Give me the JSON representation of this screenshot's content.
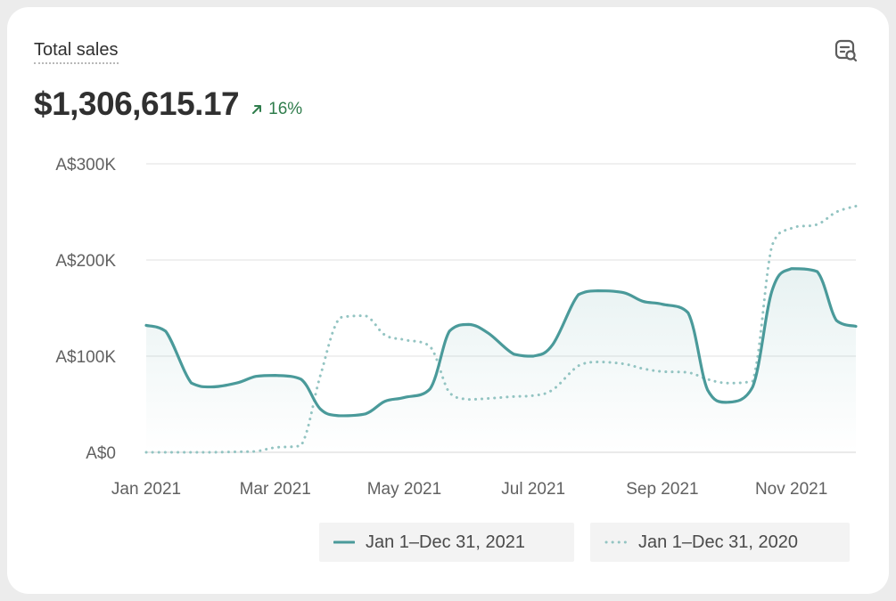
{
  "card": {
    "title": "Total sales",
    "total_value": "$1,306,615.17",
    "delta": "16%",
    "icon": "search-data-icon"
  },
  "colors": {
    "current": "#4a9a9a",
    "previous": "#93c4c2",
    "delta": "#2f7d4c",
    "grid": "#e6e6e6"
  },
  "chart_data": {
    "type": "line",
    "yticks": [
      "A$0",
      "A$100K",
      "A$200K",
      "A$300K"
    ],
    "ytick_values": [
      0,
      100000,
      200000,
      300000
    ],
    "xticks": [
      "Jan 2021",
      "Mar 2021",
      "May 2021",
      "Jul 2021",
      "Sep 2021",
      "Nov 2021"
    ],
    "xtick_months": [
      0,
      2,
      4,
      6,
      8,
      10
    ],
    "x_range_months": [
      0,
      11
    ],
    "ylim": [
      0,
      300000
    ],
    "grid": true,
    "legend_placement": "bottom-right",
    "series": [
      {
        "name": "Jan 1–Dec 31, 2021",
        "style": "solid",
        "x": [
          0,
          0.3,
          0.7,
          1.0,
          1.4,
          1.7,
          2.0,
          2.4,
          2.7,
          3.0,
          3.4,
          3.7,
          4.0,
          4.4,
          4.7,
          5.0,
          5.3,
          5.7,
          6.0,
          6.3,
          6.7,
          7.0,
          7.4,
          7.7,
          8.0,
          8.4,
          8.7,
          9.0,
          9.4,
          9.7,
          10.0,
          10.4,
          10.7,
          11.0
        ],
        "y": [
          132000,
          126000,
          72000,
          68000,
          72000,
          79000,
          80000,
          76000,
          45000,
          38000,
          40000,
          53000,
          57000,
          66000,
          126000,
          133000,
          124000,
          102000,
          100000,
          112000,
          164000,
          168000,
          166000,
          157000,
          154000,
          145000,
          65000,
          52000,
          68000,
          168000,
          191000,
          188000,
          137000,
          131000
        ]
      },
      {
        "name": "Jan 1–Dec 31, 2020",
        "style": "dotted",
        "x": [
          0,
          0.4,
          0.7,
          1.0,
          1.4,
          1.7,
          2.0,
          2.4,
          2.7,
          3.0,
          3.4,
          3.7,
          4.0,
          4.4,
          4.7,
          5.0,
          5.3,
          5.7,
          6.0,
          6.3,
          6.7,
          7.0,
          7.4,
          7.7,
          8.0,
          8.4,
          8.7,
          9.0,
          9.4,
          9.7,
          10.0,
          10.4,
          10.7,
          11.0
        ],
        "y": [
          0,
          0,
          0,
          0,
          500,
          1000,
          5000,
          7000,
          80000,
          140000,
          142000,
          122000,
          117000,
          110000,
          62000,
          55000,
          56000,
          58000,
          59000,
          65000,
          90000,
          94000,
          92000,
          87000,
          84000,
          83000,
          76000,
          72000,
          74000,
          215000,
          233000,
          237000,
          250000,
          256000
        ]
      }
    ]
  }
}
